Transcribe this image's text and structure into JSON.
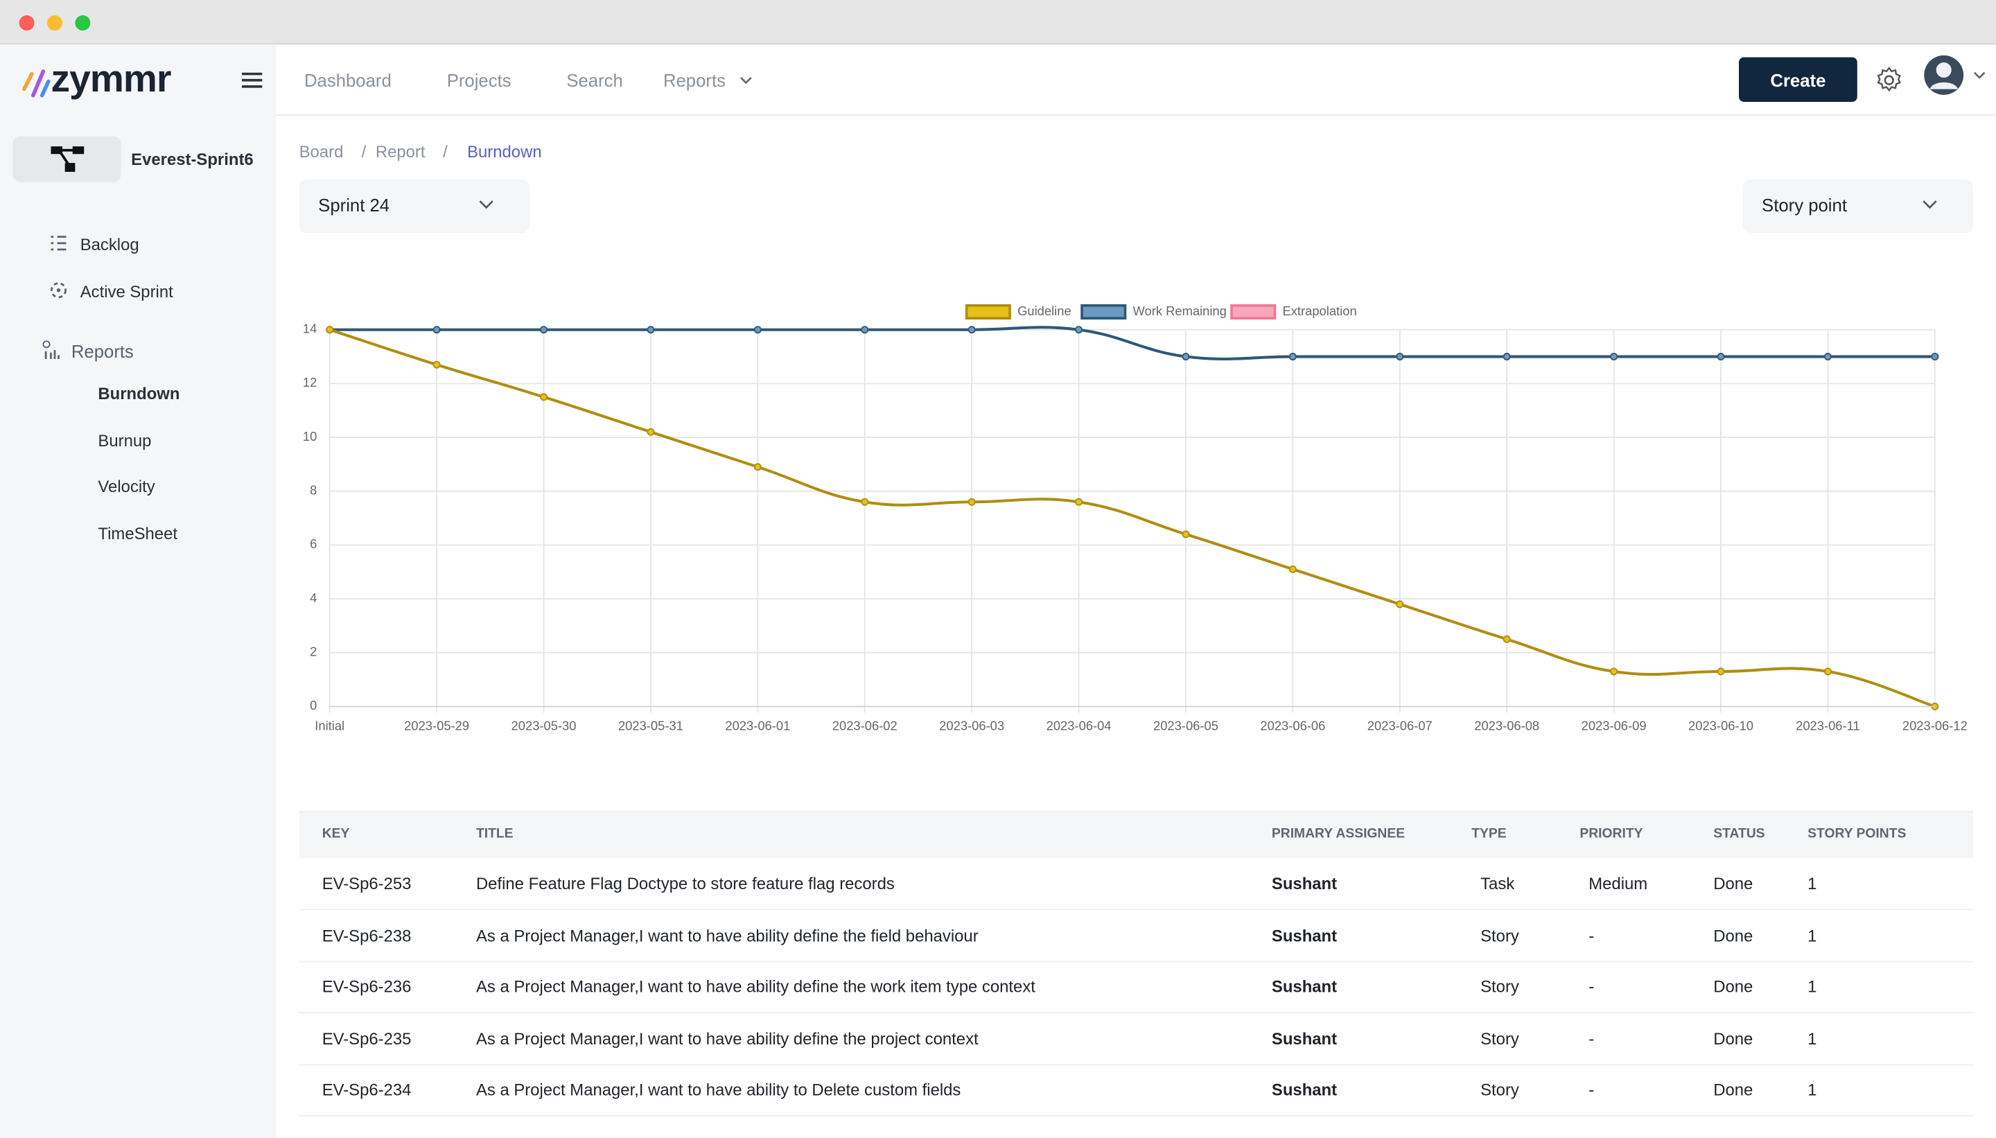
{
  "nav": {
    "logo": "zymmr",
    "items": [
      "Dashboard",
      "Projects",
      "Search",
      "Reports"
    ],
    "create": "Create"
  },
  "sidebar": {
    "project": "Everest-Sprint6",
    "menu": [
      "Backlog",
      "Active Sprint",
      "Reports"
    ],
    "reports": [
      "Burndown",
      "Burnup",
      "Velocity",
      "TimeSheet"
    ]
  },
  "breadcrumb": {
    "items": [
      "Board",
      "Report",
      "Burndown"
    ],
    "separator": "/"
  },
  "filters": {
    "sprint": "Sprint 24",
    "measure": "Story point"
  },
  "chart_data": {
    "type": "line",
    "categories": [
      "Initial",
      "2023-05-29",
      "2023-05-30",
      "2023-05-31",
      "2023-06-01",
      "2023-06-02",
      "2023-06-03",
      "2023-06-04",
      "2023-06-05",
      "2023-06-06",
      "2023-06-07",
      "2023-06-08",
      "2023-06-09",
      "2023-06-10",
      "2023-06-11",
      "2023-06-12"
    ],
    "series": [
      {
        "name": "Guideline",
        "color": "#b08d12",
        "fill": "#e6c11a",
        "values": [
          14,
          12.7,
          11.5,
          10.2,
          8.9,
          7.6,
          7.6,
          7.6,
          6.4,
          5.1,
          3.8,
          2.5,
          1.3,
          1.3,
          1.3,
          0
        ]
      },
      {
        "name": "Work Remaining",
        "color": "#2f5878",
        "fill": "#6b9bc3",
        "values": [
          14,
          14,
          14,
          14,
          14,
          14,
          14,
          14,
          13,
          13,
          13,
          13,
          13,
          13,
          13,
          13
        ]
      },
      {
        "name": "Extrapolation",
        "color": "#f07895",
        "fill": "#f7a7b8",
        "values": [
          null,
          null,
          null,
          null,
          null,
          null,
          null,
          null,
          null,
          null,
          null,
          null,
          null,
          null,
          null,
          null
        ]
      }
    ],
    "ylim": [
      0,
      14
    ],
    "yticks": [
      0,
      2,
      4,
      6,
      8,
      10,
      12,
      14
    ],
    "grid": true,
    "legend": "top"
  },
  "table": {
    "columns": [
      "KEY",
      "TITLE",
      "PRIMARY ASSIGNEE",
      "TYPE",
      "PRIORITY",
      "STATUS",
      "STORY POINTS"
    ],
    "rows": [
      [
        "EV-Sp6-253",
        "Define Feature Flag Doctype to store feature flag records",
        "Sushant",
        "Task",
        "Medium",
        "Done",
        "1"
      ],
      [
        "EV-Sp6-238",
        "As a Project Manager,I want to have ability define the field behaviour",
        "Sushant",
        "Story",
        "-",
        "Done",
        "1"
      ],
      [
        "EV-Sp6-236",
        "As a Project Manager,I want to have ability define the work item type context",
        "Sushant",
        "Story",
        "-",
        "Done",
        "1"
      ],
      [
        "EV-Sp6-235",
        "As a Project Manager,I want to have ability define the project context",
        "Sushant",
        "Story",
        "-",
        "Done",
        "1"
      ],
      [
        "EV-Sp6-234",
        "As a Project Manager,I want to have ability to Delete custom fields",
        "Sushant",
        "Story",
        "-",
        "Done",
        "1"
      ]
    ]
  }
}
